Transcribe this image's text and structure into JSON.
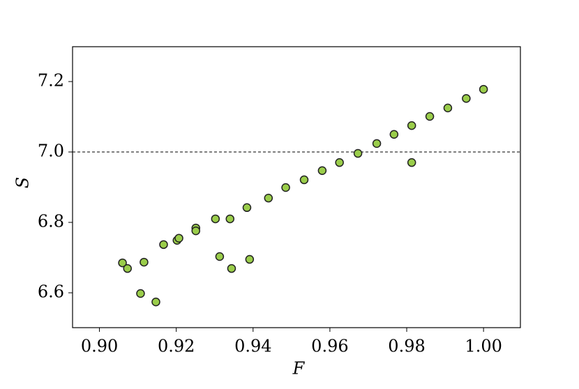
{
  "chart_data": {
    "type": "scatter",
    "xlabel": "F",
    "ylabel": "S",
    "xlim": [
      0.893,
      1.0096
    ],
    "ylim": [
      6.501,
      7.299
    ],
    "xticks": [
      {
        "value": 0.9,
        "label": "0.90"
      },
      0.92,
      0.94,
      0.96,
      0.98,
      {
        "value": 1.0,
        "label": "1.00"
      }
    ],
    "yticks": [
      6.6,
      6.8,
      {
        "value": 7.0,
        "label": "7.0"
      },
      7.2
    ],
    "hline": 7.0,
    "color": "#9acd4a",
    "edgecolor": "#222222",
    "x": [
      0.906,
      0.9073,
      0.9116,
      0.9107,
      0.9147,
      0.9167,
      0.9202,
      0.9207,
      0.9251,
      0.9251,
      0.9302,
      0.9313,
      0.934,
      0.9344,
      0.9384,
      0.9391,
      0.944,
      0.9485,
      0.9533,
      0.958,
      0.9625,
      0.9673,
      0.9722,
      0.9767,
      0.9813,
      0.9813,
      0.986,
      0.9907,
      0.9955,
      1.0
    ],
    "y": [
      6.685,
      6.669,
      6.687,
      6.598,
      6.574,
      6.737,
      6.749,
      6.755,
      6.784,
      6.776,
      6.81,
      6.703,
      6.81,
      6.669,
      6.842,
      6.695,
      6.869,
      6.899,
      6.921,
      6.947,
      6.97,
      6.996,
      7.024,
      7.05,
      7.075,
      6.97,
      7.101,
      7.125,
      7.152,
      7.178
    ]
  }
}
